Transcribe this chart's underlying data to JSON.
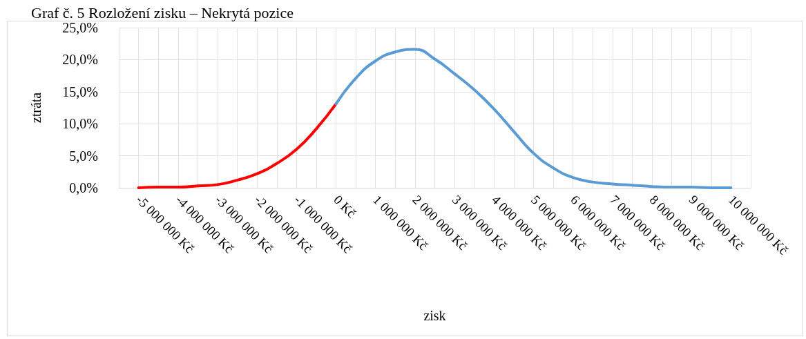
{
  "chart_data": {
    "type": "line",
    "title": "Graf č. 5 Rozložení zisku – Nekrytá pozice",
    "xlabel": "zisk",
    "ylabel": "ztráta",
    "series": [
      {
        "color": "#ff0000",
        "x": [
          -5000000,
          -4500000,
          -4000000,
          -3500000,
          -3000000,
          -2500000,
          -2000000,
          -1500000,
          -1000000,
          -500000,
          0
        ],
        "values": [
          0.0,
          0.1,
          0.1,
          0.3,
          0.5,
          1.2,
          2.2,
          3.8,
          6.0,
          9.2,
          13.1
        ]
      },
      {
        "color": "#5b9bd5",
        "x": [
          0,
          500000,
          1000000,
          1500000,
          2000000,
          2500000,
          3000000,
          3500000,
          4000000,
          4500000,
          5000000,
          5500000,
          6000000,
          6500000,
          7000000,
          7500000,
          8000000,
          8500000,
          9000000,
          9500000,
          10000000
        ],
        "values": [
          13.1,
          17.1,
          19.8,
          21.2,
          21.6,
          20.1,
          17.8,
          15.3,
          12.3,
          8.8,
          5.4,
          3.1,
          1.6,
          0.9,
          0.6,
          0.4,
          0.2,
          0.1,
          0.1,
          0.0,
          0.0
        ]
      }
    ],
    "xlim": [
      -5500000,
      10500000
    ],
    "xticks": [
      {
        "value": -5500000,
        "label": null
      },
      {
        "value": -5000000,
        "label": "-5 000 000 Kč"
      },
      {
        "value": -4500000,
        "label": null
      },
      {
        "value": -4000000,
        "label": "-4 000 000 Kč"
      },
      {
        "value": -3500000,
        "label": null
      },
      {
        "value": -3000000,
        "label": "-3 000 000 Kč"
      },
      {
        "value": -2500000,
        "label": null
      },
      {
        "value": -2000000,
        "label": "-2 000 000 Kč"
      },
      {
        "value": -1500000,
        "label": null
      },
      {
        "value": -1000000,
        "label": "-1 000 000 Kč"
      },
      {
        "value": -500000,
        "label": null
      },
      {
        "value": 0,
        "label": "0 Kč"
      },
      {
        "value": 500000,
        "label": null
      },
      {
        "value": 1000000,
        "label": "1 000 000 Kč"
      },
      {
        "value": 1500000,
        "label": null
      },
      {
        "value": 2000000,
        "label": "2 000 000 Kč"
      },
      {
        "value": 2500000,
        "label": null
      },
      {
        "value": 3000000,
        "label": "3 000 000 Kč"
      },
      {
        "value": 3500000,
        "label": null
      },
      {
        "value": 4000000,
        "label": "4 000 000 Kč"
      },
      {
        "value": 4500000,
        "label": null
      },
      {
        "value": 5000000,
        "label": "5 000 000 Kč"
      },
      {
        "value": 5500000,
        "label": null
      },
      {
        "value": 6000000,
        "label": "6 000 000 Kč"
      },
      {
        "value": 6500000,
        "label": null
      },
      {
        "value": 7000000,
        "label": "7 000 000 Kč"
      },
      {
        "value": 7500000,
        "label": null
      },
      {
        "value": 8000000,
        "label": "8 000 000 Kč"
      },
      {
        "value": 8500000,
        "label": null
      },
      {
        "value": 9000000,
        "label": "9 000 000 Kč"
      },
      {
        "value": 9500000,
        "label": null
      },
      {
        "value": 10000000,
        "label": "10 000 000 Kč"
      },
      {
        "value": 10500000,
        "label": null
      }
    ],
    "ylim": [
      0,
      25
    ],
    "yticks": [
      {
        "value": 0,
        "label": "0,0%"
      },
      {
        "value": 5,
        "label": "5,0%"
      },
      {
        "value": 10,
        "label": "10,0%"
      },
      {
        "value": 15,
        "label": "15,0%"
      },
      {
        "value": 20,
        "label": "20,0%"
      },
      {
        "value": 25,
        "label": "25,0%"
      }
    ],
    "grid": true,
    "marker": "none",
    "line_style": "solid"
  }
}
